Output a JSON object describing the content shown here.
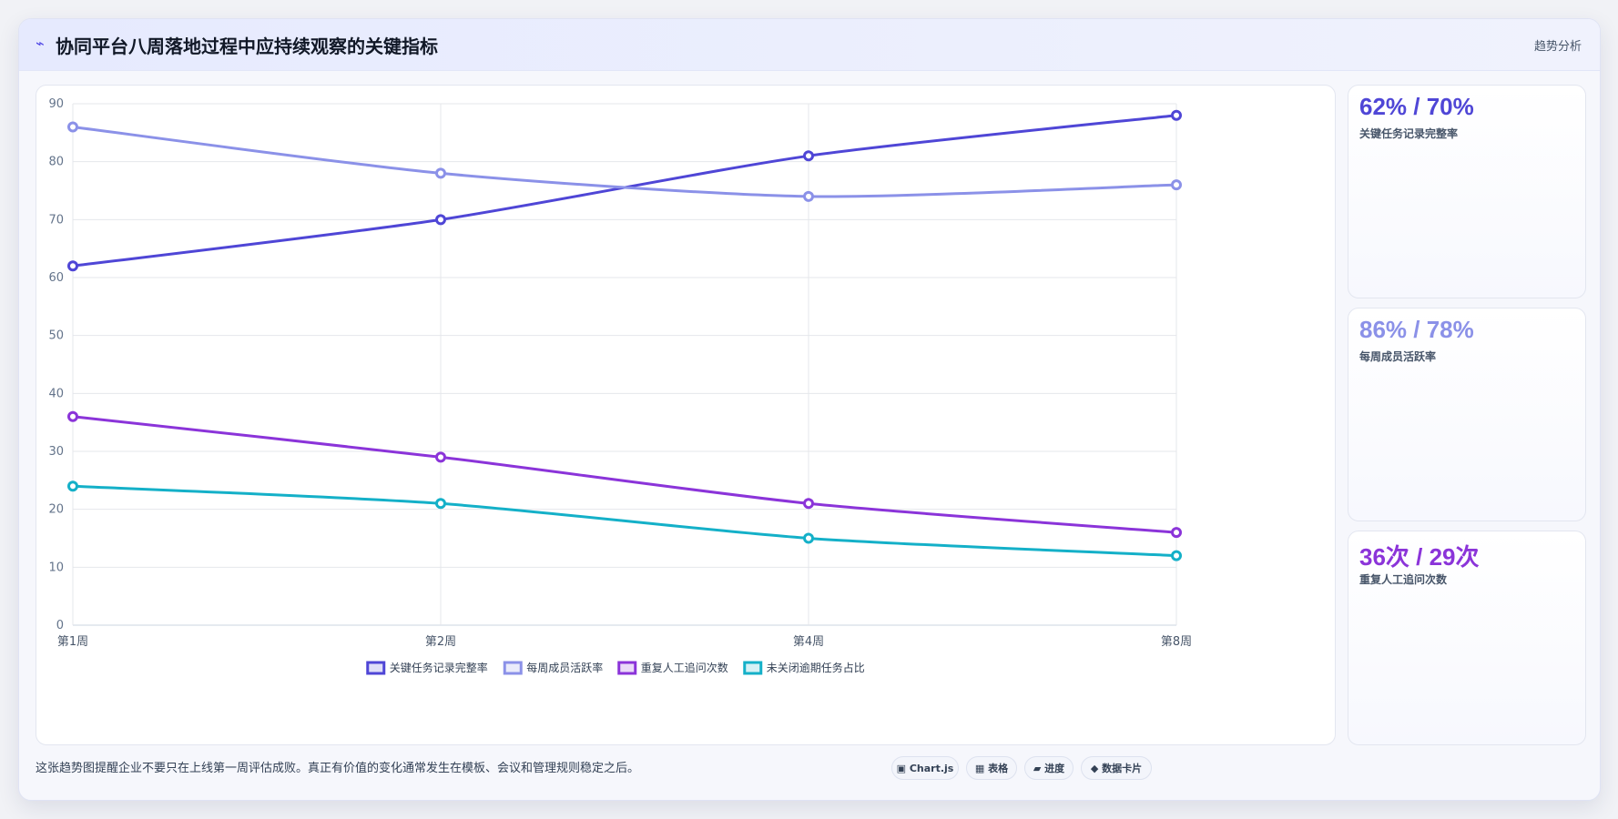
{
  "header": {
    "icon": "bolt-icon",
    "title": "协同平台八周落地过程中应持续观察的关键指标",
    "tag": "趋势分析"
  },
  "chart_data": {
    "type": "line",
    "categories": [
      "第1周",
      "第2周",
      "第4周",
      "第8周"
    ],
    "ylim": [
      0,
      90
    ],
    "yticks": [
      0,
      10,
      20,
      30,
      40,
      50,
      60,
      70,
      80,
      90
    ],
    "grid": true,
    "legend_position": "bottom",
    "series": [
      {
        "name": "关键任务记录完整率",
        "color": "#4f46d6",
        "values": [
          62,
          70,
          81,
          88
        ]
      },
      {
        "name": "每周成员活跃率",
        "color": "#8b91e8",
        "values": [
          86,
          78,
          74,
          76
        ]
      },
      {
        "name": "重复人工追问次数",
        "color": "#8b34d9",
        "values": [
          36,
          29,
          21,
          16
        ]
      },
      {
        "name": "未关闭逾期任务占比",
        "color": "#14b0c8",
        "values": [
          24,
          21,
          15,
          12
        ]
      }
    ]
  },
  "kpis": [
    {
      "value": "62% / 70%",
      "label": "关键任务记录完整率",
      "color": "#4f46d6"
    },
    {
      "value": "86% / 78%",
      "label": "每周成员活跃率",
      "color": "#8b91e8"
    },
    {
      "value": "36次 / 29次",
      "label": "重复人工追问次数",
      "color": "#8b34d9"
    }
  ],
  "footer": {
    "note": "这张趋势图提醒企业不要只在上线第一周评估成败。真正有价值的变化通常发生在模板、会议和管理规则稳定之后。",
    "chips": [
      {
        "icon": "chart-icon",
        "label": "▣ Chart.js"
      },
      {
        "icon": "table-icon",
        "label": "▦ 表格"
      },
      {
        "icon": "progress-icon",
        "label": "▰ 进度"
      },
      {
        "icon": "data-card-icon",
        "label": "◆ 数据卡片"
      }
    ]
  }
}
